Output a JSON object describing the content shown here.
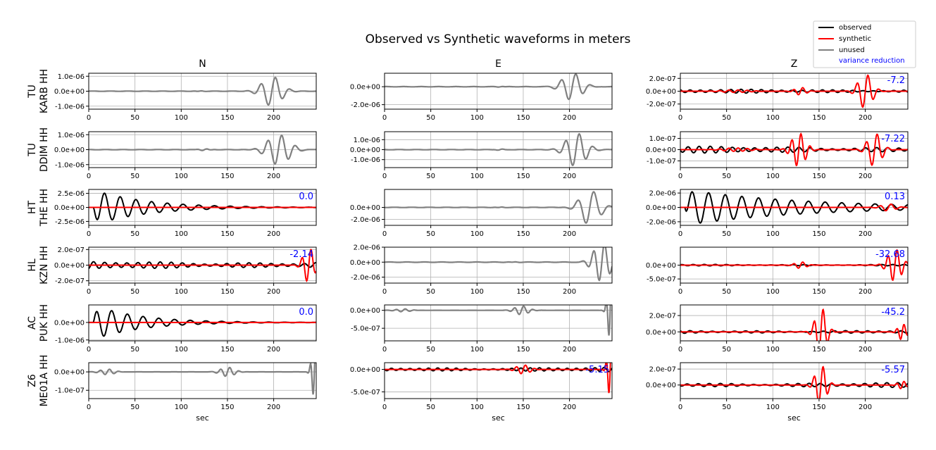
{
  "figure": {
    "title": "Observed vs Synthetic waveforms in meters",
    "columns": [
      "N",
      "E",
      "Z"
    ],
    "xlabel": "sec",
    "xticks": [
      0,
      50,
      100,
      150,
      200
    ],
    "xlim": [
      0,
      246
    ]
  },
  "legend": {
    "observed": "observed",
    "synthetic": "synthetic",
    "unused": "unused",
    "variance_reduction": "variance reduction"
  },
  "colors": {
    "observed": "#000000",
    "synthetic": "#ff0000",
    "unused": "#808080",
    "vr_text": "#0000ff",
    "grid": "#b0b0b0"
  },
  "chart_data": {
    "type": "line",
    "title": "Observed vs Synthetic waveforms in meters",
    "xlabel": "sec",
    "xlim": [
      0,
      246
    ],
    "stations": [
      {
        "network": "TU",
        "station": "KARB HH",
        "panels": [
          {
            "component": "N",
            "used": false,
            "ylim": [
              -1.2e-06,
              1.2e-06
            ],
            "yticks": [
              1e-06,
              0,
              -1e-06
            ],
            "ytick_labels": [
              "1.0e-06",
              "0.0e+00",
              "-1.0e-06"
            ],
            "vr": null,
            "unused_packets": [
              {
                "t0": 198,
                "amp": 1e-06,
                "period": 16,
                "width": 14
              },
              {
                "t0": 120,
                "amp": 2e-08,
                "period": 10,
                "width": 6
              }
            ]
          },
          {
            "component": "E",
            "used": false,
            "ylim": [
              -2.5e-06,
              1.5e-06
            ],
            "yticks": [
              0,
              -2e-06
            ],
            "ytick_labels": [
              "0.0e+00",
              "-2.0e-06"
            ],
            "vr": null,
            "unused_packets": [
              {
                "t0": 203,
                "amp": 1.5e-06,
                "period": 16,
                "width": 14
              },
              {
                "t0": 125,
                "amp": 3e-08,
                "period": 10,
                "width": 6
              }
            ]
          },
          {
            "component": "Z",
            "used": true,
            "ylim": [
              -2.8e-07,
              2.8e-07
            ],
            "yticks": [
              2e-07,
              0,
              -2e-07
            ],
            "ytick_labels": [
              "2.0e-07",
              "0.0e+00",
              "-2.0e-07"
            ],
            "vr": "-7.2",
            "observed": {
              "amp": 3e-08,
              "period": 11,
              "decay": 0
            },
            "synthetic_packets": [
              {
                "t0": 200,
                "amp": 2.7e-07,
                "period": 12,
                "width": 10
              },
              {
                "t0": 130,
                "amp": 6e-08,
                "period": 10,
                "width": 8
              },
              {
                "t0": 60,
                "amp": 2e-08,
                "period": 10,
                "width": 20
              }
            ]
          }
        ]
      },
      {
        "network": "TU",
        "station": "DDIM HH",
        "panels": [
          {
            "component": "N",
            "used": false,
            "ylim": [
              -1.2e-06,
              1.2e-06
            ],
            "yticks": [
              1e-06,
              0,
              -1e-06
            ],
            "ytick_labels": [
              "1.0e-06",
              "0.0e+00",
              "-1.0e-06"
            ],
            "vr": null,
            "unused_packets": [
              {
                "t0": 205,
                "amp": 1e-06,
                "period": 15,
                "width": 16
              },
              {
                "t0": 125,
                "amp": 5e-08,
                "period": 10,
                "width": 8
              }
            ]
          },
          {
            "component": "E",
            "used": false,
            "ylim": [
              -1.8e-06,
              1.8e-06
            ],
            "yticks": [
              1e-06,
              0,
              -1e-06
            ],
            "ytick_labels": [
              "1.0e-06",
              "0.0e+00",
              "-1.0e-06"
            ],
            "vr": null,
            "unused_packets": [
              {
                "t0": 207,
                "amp": 1.7e-06,
                "period": 15,
                "width": 14
              },
              {
                "t0": 125,
                "amp": 5e-08,
                "period": 10,
                "width": 6
              }
            ]
          },
          {
            "component": "Z",
            "used": true,
            "ylim": [
              -1.6e-07,
              1.6e-07
            ],
            "yticks": [
              1e-07,
              0,
              -1e-07
            ],
            "ytick_labels": [
              "1.0e-07",
              "0.0e+00",
              "-1.0e-07"
            ],
            "vr": "-7.22",
            "observed": {
              "amp": 3e-08,
              "period": 12,
              "decay": 0
            },
            "synthetic_packets": [
              {
                "t0": 210,
                "amp": 1.5e-07,
                "period": 12,
                "width": 10
              },
              {
                "t0": 128,
                "amp": 1.5e-07,
                "period": 10,
                "width": 10
              },
              {
                "t0": 60,
                "amp": 1.5e-08,
                "period": 10,
                "width": 20
              }
            ]
          }
        ]
      },
      {
        "network": "HT",
        "station": "THE HH",
        "panels": [
          {
            "component": "N",
            "used": true,
            "ylim": [
              -3.2e-06,
              3.2e-06
            ],
            "yticks": [
              2.5e-06,
              0,
              -2.5e-06
            ],
            "ytick_labels": [
              "2.5e-06",
              "0.0e+00",
              "-2.5e-06"
            ],
            "vr": "0.0",
            "observed": {
              "amp": 3.2e-06,
              "period": 17,
              "decay": 0.018,
              "start": 5
            },
            "synthetic_packets": []
          },
          {
            "component": "E",
            "used": false,
            "ylim": [
              -3e-06,
              3e-06
            ],
            "yticks": [
              0,
              -2e-06
            ],
            "ytick_labels": [
              "0.0e+00",
              "-2.0e-06"
            ],
            "vr": null,
            "unused_packets": [
              {
                "t0": 222,
                "amp": 2.9e-06,
                "period": 18,
                "width": 14
              },
              {
                "t0": 125,
                "amp": 5e-08,
                "period": 10,
                "width": 6
              }
            ]
          },
          {
            "component": "Z",
            "used": true,
            "ylim": [
              -2.5e-06,
              2.5e-06
            ],
            "yticks": [
              2e-06,
              0,
              -2e-06
            ],
            "ytick_labels": [
              "2.0e-06",
              "0.0e+00",
              "-2.0e-06"
            ],
            "vr": "0.13",
            "observed": {
              "amp": 2.5e-06,
              "period": 18,
              "decay": 0.008,
              "start": 5
            },
            "synthetic_packets": [
              {
                "t0": 225,
                "amp": 5e-07,
                "period": 12,
                "width": 10
              }
            ]
          }
        ]
      },
      {
        "network": "HL",
        "station": "KZN HH",
        "panels": [
          {
            "component": "N",
            "used": true,
            "ylim": [
              -2.3e-07,
              2.3e-07
            ],
            "yticks": [
              2e-07,
              0,
              -2e-07
            ],
            "ytick_labels": [
              "2.0e-07",
              "0.0e+00",
              "-2.0e-07"
            ],
            "vr": "-2.14",
            "observed": {
              "amp": 5e-08,
              "period": 12,
              "decay": 0
            },
            "synthetic_packets": [
              {
                "t0": 238,
                "amp": 2.2e-07,
                "period": 10,
                "width": 8
              }
            ]
          },
          {
            "component": "E",
            "used": false,
            "ylim": [
              -2.8e-06,
              2e-06
            ],
            "yticks": [
              2e-06,
              0,
              -2e-06
            ],
            "ytick_labels": [
              "2.0e-06",
              "0.0e+00",
              "-2.0e-06"
            ],
            "vr": null,
            "unused_packets": [
              {
                "t0": 235,
                "amp": 2.6e-06,
                "period": 12,
                "width": 12
              },
              {
                "t0": 140,
                "amp": 3e-08,
                "period": 10,
                "width": 8
              }
            ]
          },
          {
            "component": "Z",
            "used": true,
            "ylim": [
              -6.5e-07,
              6.5e-07
            ],
            "yticks": [
              0,
              -5e-07
            ],
            "ytick_labels": [
              "0.0e+00",
              "-5.0e-07"
            ],
            "vr": "-32.68",
            "observed": {
              "amp": 3e-08,
              "period": 12,
              "decay": 0
            },
            "synthetic_packets": [
              {
                "t0": 232,
                "amp": 5.8e-07,
                "period": 10,
                "width": 10
              },
              {
                "t0": 130,
                "amp": 1.2e-07,
                "period": 10,
                "width": 8
              }
            ]
          }
        ]
      },
      {
        "network": "AC",
        "station": "PUK HH",
        "panels": [
          {
            "component": "N",
            "used": true,
            "ylim": [
              -1.05e-06,
              1e-06
            ],
            "yticks": [
              0,
              -1e-06
            ],
            "ytick_labels": [
              "0.0e+00",
              "-1.0e-06"
            ],
            "vr": "0.0",
            "observed": {
              "amp": 1e-06,
              "period": 17,
              "decay": 0.02,
              "start": 5
            },
            "synthetic_packets": []
          },
          {
            "component": "E",
            "used": false,
            "ylim": [
              -8.5e-07,
              1.5e-07
            ],
            "yticks": [
              0,
              -5e-07
            ],
            "ytick_labels": [
              "0.0e+00",
              "-5.0e-07"
            ],
            "vr": null,
            "unused_packets": [
              {
                "t0": 148,
                "amp": 1.2e-07,
                "period": 10,
                "width": 10
              },
              {
                "t0": 244,
                "amp": 8e-07,
                "period": 6,
                "width": 4
              },
              {
                "t0": 20,
                "amp": 4e-08,
                "period": 10,
                "width": 10
              }
            ]
          },
          {
            "component": "Z",
            "used": true,
            "ylim": [
              -1.1e-07,
              3.3e-07
            ],
            "yticks": [
              2e-07,
              0
            ],
            "ytick_labels": [
              "2.0e-07",
              "0.0e+00"
            ],
            "vr": "-45.2",
            "observed": {
              "amp": 2e-08,
              "period": 12,
              "decay": 0
            },
            "synthetic_packets": [
              {
                "t0": 152,
                "amp": 3e-07,
                "period": 10,
                "width": 8
              },
              {
                "t0": 240,
                "amp": 1e-07,
                "period": 8,
                "width": 6
              }
            ]
          }
        ]
      },
      {
        "network": "Z6",
        "station": "ME01A HH",
        "panels": [
          {
            "component": "N",
            "used": false,
            "ylim": [
              -1.45e-07,
              5e-08
            ],
            "yticks": [
              0,
              -1e-07
            ],
            "ytick_labels": [
              "0.0e+00",
              "-1.0e-07"
            ],
            "vr": null,
            "unused_packets": [
              {
                "t0": 150,
                "amp": 2.5e-08,
                "period": 10,
                "width": 10
              },
              {
                "t0": 244,
                "amp": 1.4e-07,
                "period": 6,
                "width": 4
              },
              {
                "t0": 20,
                "amp": 1.5e-08,
                "period": 10,
                "width": 10
              }
            ]
          },
          {
            "component": "E",
            "used": true,
            "ylim": [
              -6.5e-07,
              1.5e-07
            ],
            "yticks": [
              0,
              -5e-07
            ],
            "ytick_labels": [
              "0.0e+00",
              "-5.0e-07"
            ],
            "vr": "-5.15",
            "observed": {
              "amp": 5e-08,
              "period": 10,
              "decay": 0
            },
            "synthetic_packets": [
              {
                "t0": 150,
                "amp": 1e-07,
                "period": 10,
                "width": 10
              },
              {
                "t0": 244,
                "amp": 6e-07,
                "period": 6,
                "width": 4
              }
            ]
          },
          {
            "component": "Z",
            "used": true,
            "ylim": [
              -1.7e-07,
              2.8e-07
            ],
            "yticks": [
              2e-07,
              0
            ],
            "ytick_labels": [
              "2.0e-07",
              "0.0e+00"
            ],
            "vr": "-5.57",
            "observed": {
              "amp": 3e-08,
              "period": 12,
              "decay": 0
            },
            "synthetic_packets": [
              {
                "t0": 152,
                "amp": 2.5e-07,
                "period": 10,
                "width": 8
              },
              {
                "t0": 240,
                "amp": 5e-08,
                "period": 8,
                "width": 6
              }
            ]
          }
        ]
      }
    ]
  }
}
